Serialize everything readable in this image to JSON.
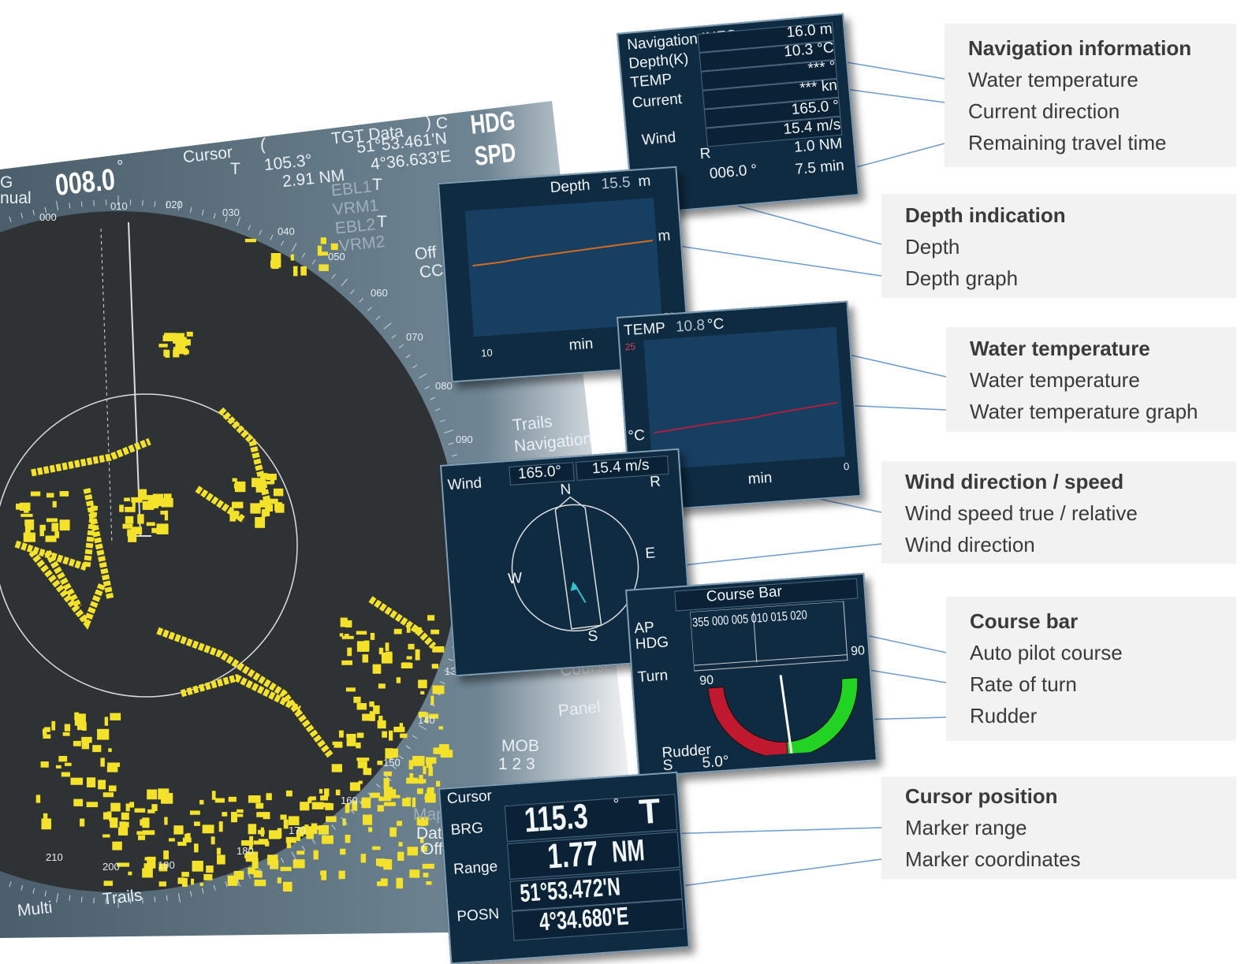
{
  "radar": {
    "hdg_label": "G",
    "mode": "nual",
    "hdg_value": "008.0",
    "hdg_unit": "°",
    "cursor": "Cursor",
    "paren_open": "(",
    "tgt": "TGT  Data",
    "paren_close": ")  C",
    "hdg": "HDG",
    "spd": "SPD",
    "brg": "105.3°",
    "brg_ref": "T",
    "range": "2.91 NM",
    "lat": "51°53.461'N",
    "lon": "4°36.633'E",
    "ebl1": "EBL1",
    "t1": "T",
    "vrm1": "VRM1",
    "ebl2": "EBL2",
    "t2": "T",
    "vrm2": "VRM2",
    "off": "Off",
    "ccr": "CCR",
    "trails": "Trails",
    "navigation": "Navigation",
    "course": "Course",
    "panel": "Panel",
    "mob": "MOB",
    "mob_nums": "1 2 3",
    "map": "Map",
    "data": "Data",
    "off2": "Off",
    "multi": "Multi",
    "trails2": "Trails",
    "bearings": [
      "000",
      "010",
      "020",
      "030",
      "040",
      "050",
      "060",
      "070",
      "080",
      "090",
      "130",
      "140",
      "150",
      "160",
      "170",
      "180",
      "190",
      "200",
      "210"
    ]
  },
  "nav_info": {
    "title": "Navigation  INFO",
    "labels": [
      "Depth(K)",
      "TEMP",
      "Current",
      "Wind"
    ],
    "values": [
      "16.0 m",
      "10.3 °C",
      "*** °",
      "*** kn",
      "165.0 °",
      "15.4 m/s",
      "R",
      "1.0 NM",
      "006.0 °",
      "7.5 min"
    ]
  },
  "depth_panel": {
    "title": "Depth",
    "value": "15.5",
    "unit": "m",
    "axis_unit": "m",
    "axis_max": "50",
    "x_start": "10",
    "x_unit": "min"
  },
  "temp_panel": {
    "title": "TEMP",
    "value": "10.8",
    "unit": "°C",
    "axis_max": "25",
    "axis_unit": "°C",
    "x_unit": "min",
    "x_end": "0"
  },
  "wind_panel": {
    "title": "Wind",
    "direction": "165.0°",
    "speed": "15.4 m/s",
    "mode": "R",
    "compass": [
      "N",
      "E",
      "S",
      "W"
    ]
  },
  "course_bar": {
    "title": "Course  Bar",
    "ap": "AP",
    "hdg": "HDG",
    "scale": "355  000  005  010  015  020",
    "turn": "Turn",
    "turn_max": "90",
    "rudder_max": "90",
    "rudder": "Rudder",
    "side": "S",
    "rudder_value": "5.0°"
  },
  "cursor_panel": {
    "title": "Cursor",
    "brg_label": "BRG",
    "brg": "115.3",
    "deg": "°",
    "ref": "T",
    "range_label": "Range",
    "range": "1.77",
    "range_unit": "NM",
    "posn_label": "POSN",
    "lat": "51°53.472'N",
    "lon": "4°34.680'E"
  },
  "callouts": [
    {
      "title": "Navigation information",
      "items": [
        "Water temperature",
        "Current direction",
        "Remaining travel time"
      ]
    },
    {
      "title": "Depth indication",
      "items": [
        "Depth",
        "Depth graph"
      ]
    },
    {
      "title": "Water temperature",
      "items": [
        "Water temperature",
        "Water temperature graph"
      ]
    },
    {
      "title": "Wind direction / speed",
      "items": [
        "Wind speed true / relative",
        "Wind direction"
      ]
    },
    {
      "title": "Course bar",
      "items": [
        "Auto pilot course",
        "Rate of turn",
        "Rudder"
      ]
    },
    {
      "title": "Cursor position",
      "items": [
        "Marker range",
        "Marker coordinates"
      ]
    }
  ]
}
